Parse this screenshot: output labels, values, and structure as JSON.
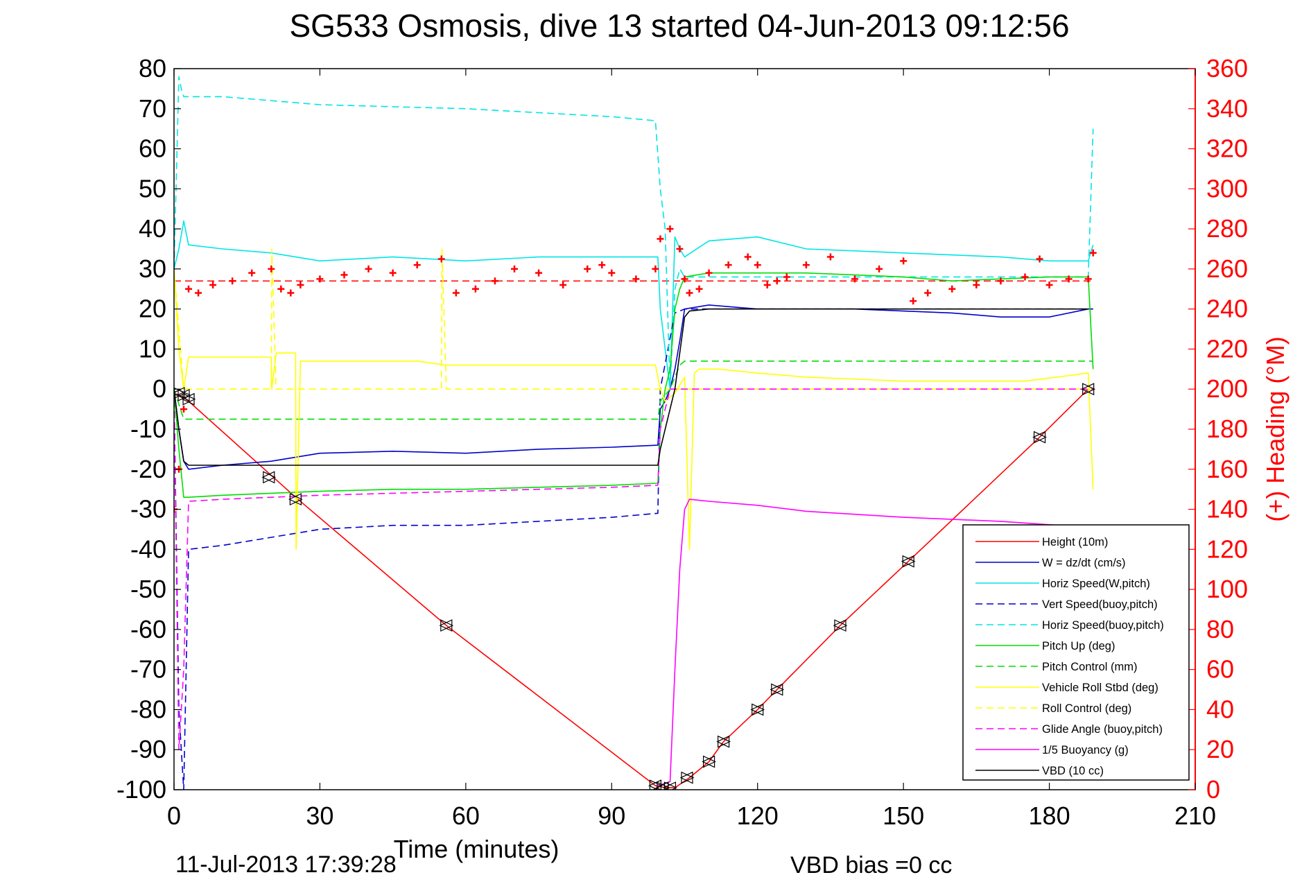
{
  "chart_data": {
    "type": "line",
    "title": "SG533 Osmosis, dive 13 started 04-Jun-2013 09:12:56",
    "xlabel": "Time (minutes)",
    "ylabel_right": "(+) Heading (°M)",
    "footer_left": "11-Jul-2013 17:39:28",
    "footer_right": "VBD bias =0 cc",
    "xlim": [
      0,
      210
    ],
    "ylim": [
      -100,
      80
    ],
    "ylim_right": [
      0,
      360
    ],
    "x_ticks": [
      0,
      30,
      60,
      90,
      120,
      150,
      180,
      210
    ],
    "y_ticks": [
      80,
      70,
      60,
      50,
      40,
      30,
      20,
      10,
      0,
      -10,
      -20,
      -30,
      -40,
      -50,
      -60,
      -70,
      -80,
      -90,
      -100
    ],
    "y_ticks_right": [
      360,
      340,
      320,
      300,
      280,
      260,
      240,
      220,
      200,
      180,
      160,
      140,
      120,
      100,
      80,
      60,
      40,
      20,
      0
    ],
    "legend_position": "bottom-right",
    "grid": false,
    "colors": {
      "red": "#ff0000",
      "blue": "#0000cc",
      "cyan": "#00e5e5",
      "green": "#00dd00",
      "yellow": "#ffff00",
      "magenta": "#ff00ff",
      "black": "#000000"
    },
    "series": [
      {
        "name": "Height (10m)",
        "color": "red",
        "dash": false,
        "x": [
          0,
          1,
          2,
          3,
          25,
          56,
          99,
          101,
          103,
          106,
          110,
          113,
          120,
          124,
          137,
          151,
          178,
          188,
          189
        ],
        "y": [
          -1,
          -1.5,
          -2,
          -3,
          -27,
          -59,
          -99,
          -99.5,
          -99.5,
          -97,
          -93,
          -88,
          -80,
          -75,
          -59,
          -43,
          -12,
          0,
          0
        ]
      },
      {
        "name": "W = dz/dt (cm/s)",
        "color": "blue",
        "dash": false,
        "x": [
          0,
          1,
          2,
          3,
          10,
          20,
          30,
          45,
          60,
          75,
          90,
          99.5,
          100,
          101,
          102,
          103,
          104,
          105,
          110,
          120,
          140,
          150,
          160,
          170,
          180,
          188,
          189
        ],
        "y": [
          0,
          -10,
          -18,
          -20,
          -19,
          -18,
          -16,
          -15.5,
          -16,
          -15,
          -14.5,
          -14,
          -5,
          -3,
          0,
          5,
          12,
          20,
          21,
          20,
          20,
          19.5,
          19,
          18,
          18,
          20,
          20
        ]
      },
      {
        "name": "Horiz Speed(W,pitch)",
        "color": "cyan",
        "dash": false,
        "x": [
          0,
          1,
          2,
          3,
          10,
          20,
          30,
          45,
          60,
          75,
          90,
          99.5,
          100,
          101,
          102,
          103,
          104,
          105,
          110,
          120,
          130,
          150,
          170,
          180,
          188,
          189
        ],
        "y": [
          30,
          35,
          42,
          36,
          35,
          34,
          32,
          33,
          32,
          33,
          33,
          33,
          20,
          10,
          0,
          38,
          35,
          33,
          37,
          38,
          35,
          34,
          33,
          32,
          32,
          36
        ]
      },
      {
        "name": "Vert Speed(buoy,pitch)",
        "color": "blue",
        "dash": true,
        "x": [
          0,
          1,
          2,
          3,
          10,
          20,
          30,
          45,
          60,
          75,
          90,
          99.5,
          100,
          103,
          105,
          110,
          140,
          188,
          189
        ],
        "y": [
          0,
          -80,
          -100,
          -40,
          -39,
          -37,
          -35,
          -34,
          -34,
          -33,
          -32,
          -31,
          0,
          19,
          20,
          20,
          20,
          20,
          20
        ]
      },
      {
        "name": "Horiz Speed(buoy,pitch)",
        "color": "cyan",
        "dash": true,
        "x": [
          0,
          1,
          1.5,
          2,
          3,
          10,
          30,
          60,
          90,
          99,
          100,
          101,
          102,
          103,
          104,
          105,
          110,
          130,
          188,
          189
        ],
        "y": [
          30,
          78,
          75,
          73,
          73,
          73,
          71,
          70,
          68,
          67,
          50,
          40,
          0,
          25,
          30,
          28,
          28,
          28,
          28,
          65
        ]
      },
      {
        "name": "Pitch Up (deg)",
        "color": "green",
        "dash": false,
        "x": [
          0,
          1,
          2,
          3,
          10,
          20,
          30,
          45,
          60,
          75,
          90,
          99.5,
          100,
          101,
          102,
          103,
          104,
          105,
          110,
          130,
          150,
          160,
          180,
          188,
          189
        ],
        "y": [
          0,
          -15,
          -27,
          -27,
          -26.5,
          -26,
          -25.5,
          -25,
          -25,
          -24.5,
          -24,
          -23.5,
          -10,
          0,
          5,
          20,
          25,
          28,
          29,
          29,
          28,
          27,
          28,
          28,
          5
        ]
      },
      {
        "name": "Pitch Control (mm)",
        "color": "green",
        "dash": true,
        "x": [
          0,
          2,
          3,
          99.5,
          100,
          102,
          104,
          105,
          130,
          150,
          188,
          189
        ],
        "y": [
          0,
          -7.5,
          -7.5,
          -7.5,
          -3,
          0,
          6,
          7,
          7,
          7,
          7,
          7
        ]
      },
      {
        "name": "Vehicle Roll Stbd (deg)",
        "color": "yellow",
        "dash": false,
        "x": [
          0,
          1,
          2,
          3,
          10,
          20,
          20.1,
          21,
          25,
          25.1,
          26,
          50,
          56,
          60,
          80,
          99,
          100,
          101,
          103,
          105,
          106,
          107,
          108,
          110,
          112,
          120,
          130,
          150,
          175,
          188,
          189
        ],
        "y": [
          30,
          10,
          0,
          8,
          8,
          8,
          0,
          9,
          9,
          -40,
          7,
          7,
          6,
          6,
          6,
          6,
          0,
          -3,
          -1,
          3,
          -40,
          4,
          5,
          5,
          5,
          4,
          3,
          2,
          2,
          4,
          -25
        ]
      },
      {
        "name": "Roll Control (deg)",
        "color": "yellow",
        "dash": true,
        "x": [
          0,
          2,
          3,
          20,
          20.1,
          21,
          55,
          55.1,
          56,
          99,
          100,
          105,
          188,
          189
        ],
        "y": [
          30,
          0,
          0,
          0,
          35,
          0,
          0,
          35,
          0,
          0,
          0,
          0,
          0,
          0
        ]
      },
      {
        "name": "Glide Angle (buoy,pitch)",
        "color": "magenta",
        "dash": true,
        "x": [
          0,
          1,
          2,
          3,
          10,
          20,
          30,
          45,
          60,
          75,
          90,
          99.5,
          100,
          102,
          104,
          105,
          130,
          188,
          189
        ],
        "y": [
          0,
          -90,
          -70,
          -28,
          -27.5,
          -27,
          -26.5,
          -26,
          -25.5,
          -25,
          -24.5,
          -24,
          -10,
          0,
          0,
          0,
          0,
          0,
          0
        ]
      },
      {
        "name": "1/5 Buoyancy (g)",
        "color": "magenta",
        "dash": false,
        "x": [
          99.5,
          102,
          103,
          104,
          105,
          106,
          110,
          120,
          130,
          150,
          170,
          188
        ],
        "y": [
          -99,
          -98,
          -70,
          -45,
          -30,
          -27.5,
          -28,
          -29,
          -30.5,
          -32,
          -33,
          -34.5
        ]
      },
      {
        "name": "VBD (10 cc)",
        "color": "black",
        "dash": false,
        "x": [
          0,
          1,
          2,
          3,
          10,
          30,
          60,
          90,
          99.5,
          100,
          103,
          105,
          106,
          110,
          130,
          150,
          188
        ],
        "y": [
          0,
          -10,
          -18,
          -19,
          -19,
          -19,
          -19,
          -19,
          -19,
          -15,
          0,
          18,
          19.5,
          20,
          20,
          20,
          20
        ]
      }
    ],
    "heading_series": {
      "name": "(+) Heading",
      "color": "red",
      "x": [
        0,
        1,
        2,
        3,
        5,
        8,
        12,
        16,
        20,
        22,
        24,
        26,
        30,
        35,
        40,
        45,
        50,
        55,
        58,
        62,
        66,
        70,
        75,
        80,
        85,
        88,
        90,
        95,
        99,
        100,
        102,
        104,
        105,
        106,
        108,
        110,
        114,
        118,
        120,
        122,
        124,
        126,
        130,
        135,
        140,
        145,
        150,
        152,
        155,
        160,
        165,
        170,
        175,
        178,
        180,
        184,
        188,
        189
      ],
      "y": [
        140,
        160,
        190,
        250,
        248,
        252,
        254,
        258,
        260,
        250,
        248,
        252,
        255,
        257,
        260,
        258,
        262,
        265,
        248,
        250,
        254,
        260,
        258,
        252,
        260,
        262,
        258,
        255,
        260,
        275,
        280,
        270,
        255,
        248,
        250,
        258,
        262,
        266,
        262,
        252,
        254,
        256,
        262,
        266,
        255,
        260,
        264,
        244,
        248,
        250,
        252,
        254,
        256,
        265,
        252,
        255,
        255,
        268
      ]
    },
    "heading_reference": {
      "value": 254,
      "color": "red",
      "dash": true
    },
    "markers": {
      "x": [
        1,
        2,
        3,
        19.5,
        25,
        56,
        99,
        100.5,
        102,
        105.5,
        110,
        113,
        120,
        124,
        137,
        151,
        178,
        188
      ],
      "y": [
        -1,
        -1.5,
        -2.5,
        -22,
        -27.5,
        -59,
        -99,
        -99.5,
        -99.5,
        -97,
        -93,
        -88,
        -80,
        -75,
        -59,
        -43,
        -12,
        0
      ]
    }
  }
}
